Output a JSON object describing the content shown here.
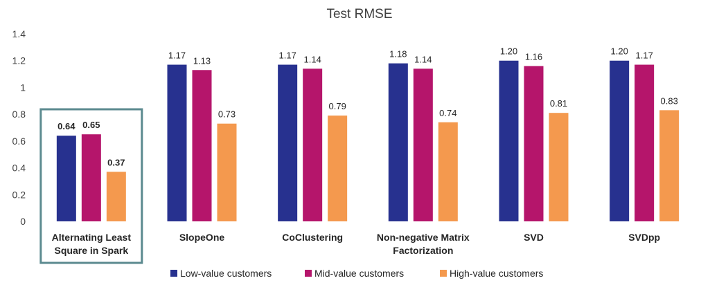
{
  "chart_data": {
    "type": "bar",
    "title": "Test RMSE",
    "xlabel": "",
    "ylabel": "",
    "ylim": [
      0,
      1.4
    ],
    "yticks": [
      "0",
      "0.2",
      "0.4",
      "0.6",
      "0.8",
      "1",
      "1.2",
      "1.4"
    ],
    "grid": false,
    "legend_position": "bottom",
    "categories": [
      [
        "Alternating Least",
        "Square in Spark"
      ],
      [
        "SlopeOne"
      ],
      [
        "CoClustering"
      ],
      [
        "Non-negative Matrix",
        "Factorization"
      ],
      [
        "SVD"
      ],
      [
        "SVDpp"
      ]
    ],
    "highlighted_category_index": 0,
    "highlight_color": "#5B8A8F",
    "series": [
      {
        "name": "Low-value customers",
        "color": "#27318F",
        "values": [
          0.64,
          1.17,
          1.17,
          1.18,
          1.2,
          1.2
        ],
        "labels": [
          "0.64",
          "1.17",
          "1.17",
          "1.18",
          "1.20",
          "1.20"
        ]
      },
      {
        "name": "Mid-value customers",
        "color": "#B5156B",
        "values": [
          0.65,
          1.13,
          1.14,
          1.14,
          1.16,
          1.17
        ],
        "labels": [
          "0.65",
          "1.13",
          "1.14",
          "1.14",
          "1.16",
          "1.17"
        ]
      },
      {
        "name": "High-value customers",
        "color": "#F4994E",
        "values": [
          0.37,
          0.73,
          0.79,
          0.74,
          0.81,
          0.83
        ],
        "labels": [
          "0.37",
          "0.73",
          "0.79",
          "0.74",
          "0.81",
          "0.83"
        ]
      }
    ]
  }
}
